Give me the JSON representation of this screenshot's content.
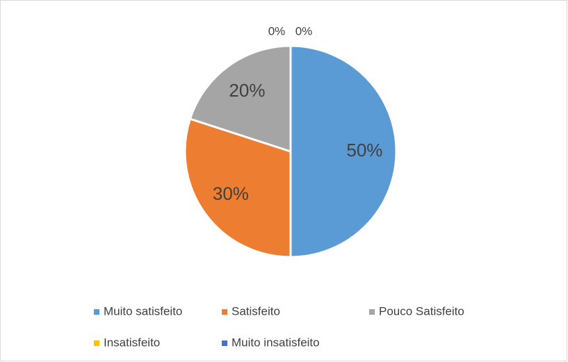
{
  "chart_data": {
    "type": "pie",
    "categories": [
      "Muito satisfeito",
      "Satisfeito",
      "Pouco Satisfeito",
      "Insatisfeito",
      "Muito insatisfeito"
    ],
    "values": [
      50,
      30,
      20,
      0,
      0
    ],
    "value_labels": [
      "50%",
      "30%",
      "20%",
      "0%",
      "0%"
    ],
    "colors": [
      "#5b9bd5",
      "#ed7d31",
      "#a5a5a5",
      "#ffc000",
      "#4472c4"
    ],
    "legend": "bottom"
  }
}
